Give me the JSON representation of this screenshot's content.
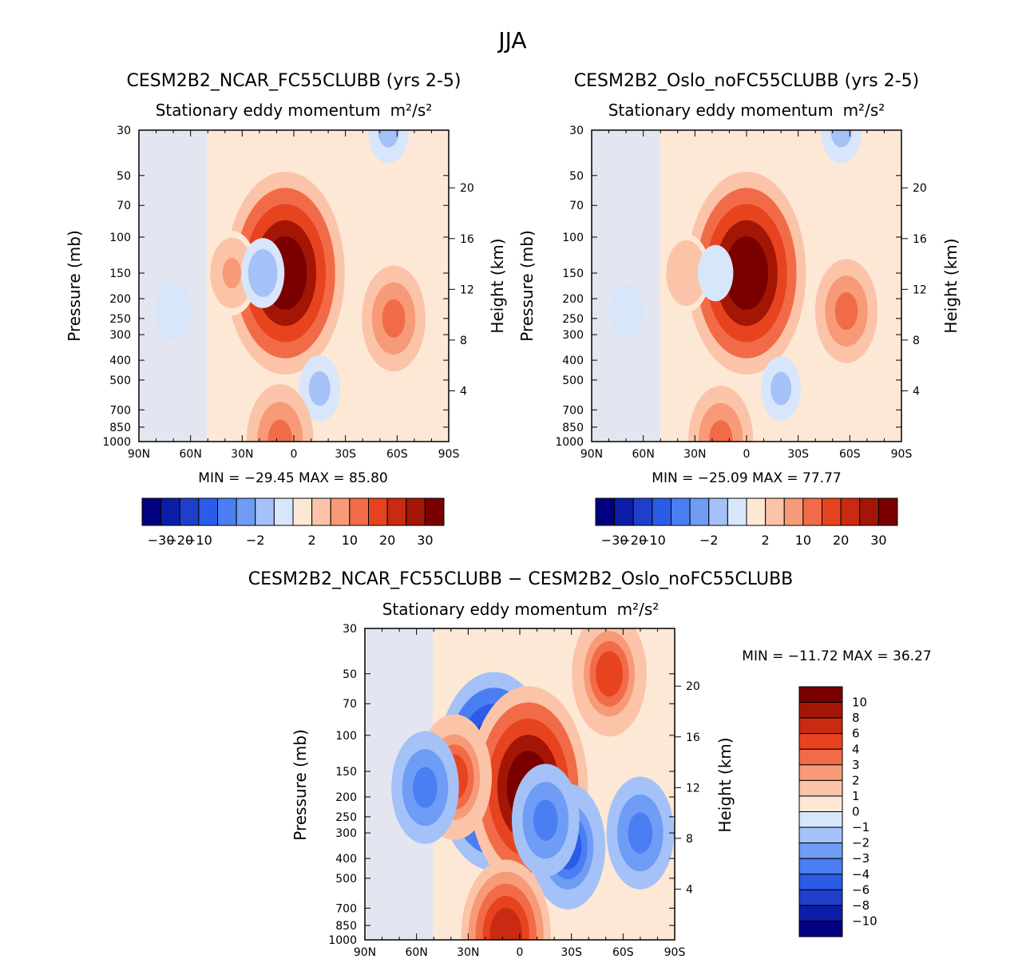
{
  "figure_title": "JJA",
  "chart_data": [
    {
      "type": "contour",
      "id": "p1",
      "title": "CESM2B2_NCAR_FC55CLUBB (yrs 2-5)",
      "subtitle": "Stationary eddy momentum",
      "units": "m²/s²",
      "xlabel": "",
      "ylabel": "Pressure (mb)",
      "ylabel_right": "Height (km)",
      "x_ticks": [
        "90N",
        "60N",
        "30N",
        "0",
        "30S",
        "60S",
        "90S"
      ],
      "x_range": [
        90,
        -90
      ],
      "y_ticks": [
        "30",
        "50",
        "70",
        "100",
        "150",
        "200",
        "250",
        "300",
        "400",
        "500",
        "700",
        "850",
        "1000"
      ],
      "y_range": [
        30,
        1000
      ],
      "y_right_ticks": [
        "4",
        "8",
        "12",
        "16",
        "20"
      ],
      "min_max": "MIN = −29.45   MAX =  85.80",
      "colorbar_labels": [
        "−30",
        "−20",
        "−10",
        "−2",
        "2",
        "10",
        "20",
        "30"
      ],
      "blobs": [
        {
          "lat": 5,
          "p": 150,
          "value": 85.8
        },
        {
          "lat": -58,
          "p": 250,
          "value": 32
        },
        {
          "lat": 36,
          "p": 150,
          "value": 20
        },
        {
          "lat": 18,
          "p": 150,
          "value": -12
        },
        {
          "lat": 70,
          "p": 230,
          "value": -6
        },
        {
          "lat": -15,
          "p": 550,
          "value": -10
        },
        {
          "lat": 8,
          "p": 980,
          "value": 35
        },
        {
          "lat": -55,
          "p": 30,
          "value": -10
        }
      ]
    },
    {
      "type": "contour",
      "id": "p2",
      "title": "CESM2B2_Oslo_noFC55CLUBB (yrs 2-5)",
      "subtitle": "Stationary eddy momentum",
      "units": "m²/s²",
      "xlabel": "",
      "ylabel": "Pressure (mb)",
      "ylabel_right": "Height (km)",
      "x_ticks": [
        "90N",
        "60N",
        "30N",
        "0",
        "30S",
        "60S",
        "90S"
      ],
      "x_range": [
        90,
        -90
      ],
      "y_ticks": [
        "30",
        "50",
        "70",
        "100",
        "150",
        "200",
        "250",
        "300",
        "400",
        "500",
        "700",
        "850",
        "1000"
      ],
      "y_range": [
        30,
        1000
      ],
      "y_right_ticks": [
        "4",
        "8",
        "12",
        "16",
        "20"
      ],
      "min_max": "MIN = −25.09   MAX =  77.77",
      "colorbar_labels": [
        "−30",
        "−20",
        "−10",
        "−2",
        "2",
        "10",
        "20",
        "30"
      ],
      "blobs": [
        {
          "lat": 0,
          "p": 150,
          "value": 77.8
        },
        {
          "lat": -58,
          "p": 230,
          "value": 28
        },
        {
          "lat": 35,
          "p": 150,
          "value": 15
        },
        {
          "lat": 18,
          "p": 150,
          "value": -4
        },
        {
          "lat": 70,
          "p": 230,
          "value": -3
        },
        {
          "lat": -20,
          "p": 550,
          "value": -8
        },
        {
          "lat": 15,
          "p": 980,
          "value": 30
        },
        {
          "lat": -55,
          "p": 30,
          "value": -9
        }
      ]
    },
    {
      "type": "contour",
      "id": "p3",
      "title": "CESM2B2_NCAR_FC55CLUBB − CESM2B2_Oslo_noFC55CLUBB",
      "subtitle": "Stationary eddy momentum",
      "units": "m²/s²",
      "xlabel": "",
      "ylabel": "Pressure (mb)",
      "ylabel_right": "Height (km)",
      "x_ticks": [
        "90N",
        "60N",
        "30N",
        "0",
        "30S",
        "60S",
        "90S"
      ],
      "x_range": [
        90,
        -90
      ],
      "y_ticks": [
        "30",
        "50",
        "70",
        "100",
        "150",
        "200",
        "250",
        "300",
        "400",
        "500",
        "700",
        "850",
        "1000"
      ],
      "y_range": [
        30,
        1000
      ],
      "y_right_ticks": [
        "4",
        "8",
        "12",
        "16",
        "20"
      ],
      "min_max": "MIN = −11.72   MAX =  36.27",
      "colorbar_labels": [
        "10",
        "8",
        "6",
        "4",
        "3",
        "2",
        "1",
        "0",
        "−1",
        "−2",
        "−3",
        "−4",
        "−6",
        "−8",
        "−10"
      ],
      "blobs": [
        {
          "lat": 15,
          "p": 150,
          "value": -11.7
        },
        {
          "lat": -5,
          "p": 180,
          "value": 12
        },
        {
          "lat": 38,
          "p": 160,
          "value": 6
        },
        {
          "lat": 55,
          "p": 180,
          "value": -5
        },
        {
          "lat": -52,
          "p": 50,
          "value": 6
        },
        {
          "lat": -28,
          "p": 350,
          "value": -6
        },
        {
          "lat": -70,
          "p": 300,
          "value": -5
        },
        {
          "lat": 8,
          "p": 950,
          "value": 8
        },
        {
          "lat": -15,
          "p": 260,
          "value": -5
        }
      ]
    }
  ],
  "colors": {
    "scale": [
      "#000080",
      "#0c1ea8",
      "#1f3ec9",
      "#2b5ce8",
      "#4a7ef2",
      "#6f9cf5",
      "#a4c1f8",
      "#d7e6fb",
      "#fde8d6",
      "#fbc4a8",
      "#f79a78",
      "#f26b48",
      "#e8431f",
      "#c92a12",
      "#a31605",
      "#7a0000"
    ]
  }
}
